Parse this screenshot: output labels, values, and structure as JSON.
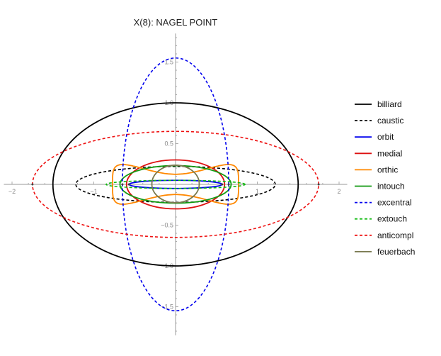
{
  "chart_data": {
    "type": "line",
    "title": "X(8): NAGEL POINT",
    "xlabel": "",
    "ylabel": "",
    "xlim": [
      -2.1,
      2.1
    ],
    "ylim": [
      -1.85,
      1.85
    ],
    "x_ticks": [
      {
        "value": -2,
        "label": "−2"
      },
      {
        "value": -1,
        "label": "−1"
      },
      {
        "value": 1,
        "label": "1"
      },
      {
        "value": 2,
        "label": "2"
      }
    ],
    "y_ticks": [
      {
        "value": 1.5,
        "label": "1.5"
      },
      {
        "value": 1.0,
        "label": "1.0"
      },
      {
        "value": 0.5,
        "label": "0.5"
      },
      {
        "value": -0.5,
        "label": "−0.5"
      },
      {
        "value": -1.0,
        "label": "−1.0"
      },
      {
        "value": -1.5,
        "label": "−1.5"
      }
    ],
    "grid": false,
    "legend_position": "right",
    "series": [
      {
        "name": "billiard",
        "color": "#000000",
        "dash": "solid",
        "shape": "ellipse",
        "a": 1.5,
        "b": 1.0
      },
      {
        "name": "caustic",
        "color": "#000000",
        "dash": "dashed",
        "shape": "ellipse",
        "a": 1.22,
        "b": 0.22
      },
      {
        "name": "orbit",
        "color": "#0000ee",
        "dash": "solid",
        "shape": "ellipse",
        "a": 0.57,
        "b": 0.05
      },
      {
        "name": "medial",
        "color": "#dd1111",
        "dash": "solid",
        "shape": "ellipse",
        "a": 0.6,
        "b": 0.3
      },
      {
        "name": "orthic",
        "color": "#ff8800",
        "dash": "solid",
        "shape": "orthic",
        "a": 0.8,
        "b": 0.2
      },
      {
        "name": "intouch",
        "color": "#119911",
        "dash": "solid",
        "shape": "ellipse",
        "a": 0.68,
        "b": 0.23
      },
      {
        "name": "excentral",
        "color": "#0000ee",
        "dash": "dashed",
        "shape": "ellipse",
        "a": 0.65,
        "b": 1.55
      },
      {
        "name": "extouch",
        "color": "#11bb11",
        "dash": "dashed",
        "shape": "ellipse",
        "a": 0.85,
        "b": 0.05
      },
      {
        "name": "anticompl",
        "color": "#ee1111",
        "dash": "dashed",
        "shape": "ellipse",
        "a": 1.75,
        "b": 0.65
      },
      {
        "name": "feuerbach",
        "color": "#7a7a50",
        "dash": "solid",
        "shape": "ellipse",
        "a": 0.29,
        "b": 0.23,
        "cy": 0.005
      }
    ]
  }
}
